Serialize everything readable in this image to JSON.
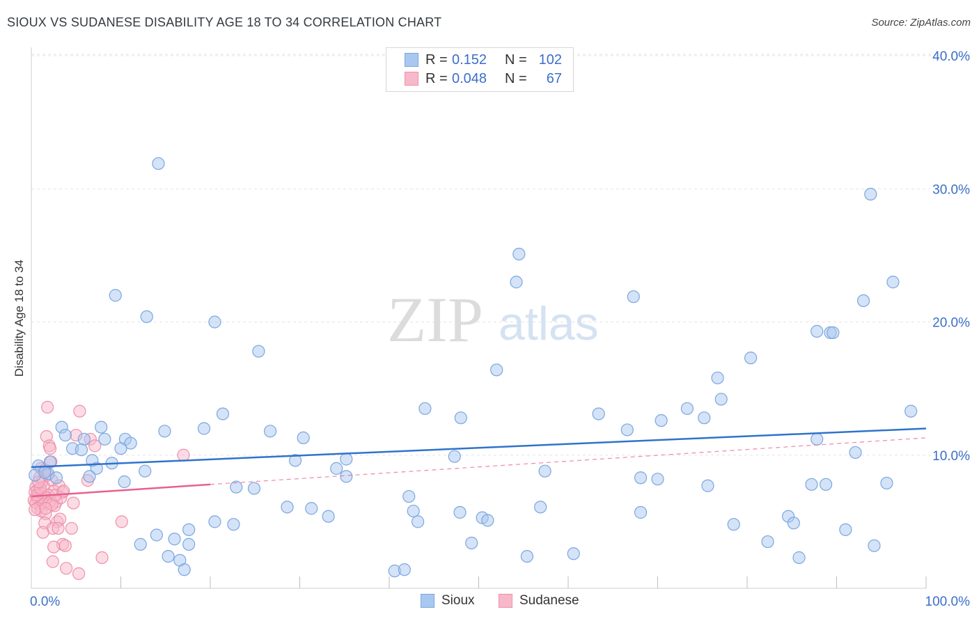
{
  "title": "SIOUX VS SUDANESE DISABILITY AGE 18 TO 34 CORRELATION CHART",
  "source": "Source: ZipAtlas.com",
  "watermark": {
    "zip": "ZIP",
    "atlas": "atlas"
  },
  "colors": {
    "sioux_fill": "#a9c8f0",
    "sioux_stroke": "#7aa6e0",
    "sioux_line": "#2f73cc",
    "sudanese_fill": "#f7b9ca",
    "sudanese_stroke": "#ee8fab",
    "sudanese_line": "#e8608e",
    "axis_label": "#3b6fc8",
    "grid": "#e3e3e3"
  },
  "legend_top": {
    "rows": [
      {
        "series": "Sioux",
        "r_label": "R =",
        "r_value": "0.152",
        "n_label": "N =",
        "n_value": "102"
      },
      {
        "series": "Sudanese",
        "r_label": "R =",
        "r_value": "0.048",
        "n_label": "N =",
        "n_value": "67"
      }
    ]
  },
  "legend_bottom": [
    "Sioux",
    "Sudanese"
  ],
  "chart_data": {
    "type": "scatter",
    "title": "SIOUX VS SUDANESE DISABILITY AGE 18 TO 34 CORRELATION CHART",
    "xlabel": "",
    "ylabel": "Disability Age 18 to 34",
    "xlim": [
      0,
      100
    ],
    "ylim": [
      0,
      42
    ],
    "x_tick_labels": [
      {
        "value": 0,
        "label": "0.0%"
      },
      {
        "value": 100,
        "label": "100.0%"
      }
    ],
    "y_tick_labels": [
      {
        "value": 10,
        "label": "10.0%"
      },
      {
        "value": 20,
        "label": "20.0%"
      },
      {
        "value": 30,
        "label": "30.0%"
      },
      {
        "value": 40,
        "label": "40.0%"
      }
    ],
    "grid": true,
    "series": [
      {
        "name": "Sioux",
        "trend": {
          "x": [
            0,
            100
          ],
          "y": [
            9.1,
            12.0
          ],
          "style": "solid"
        },
        "points": [
          [
            14.2,
            31.9
          ],
          [
            93.8,
            29.6
          ],
          [
            54.5,
            25.1
          ],
          [
            54.2,
            23.0
          ],
          [
            96.3,
            23.0
          ],
          [
            9.4,
            22.0
          ],
          [
            67.3,
            21.9
          ],
          [
            93.0,
            21.6
          ],
          [
            12.9,
            20.4
          ],
          [
            20.5,
            20.0
          ],
          [
            87.8,
            19.3
          ],
          [
            89.3,
            19.2
          ],
          [
            89.6,
            19.2
          ],
          [
            25.4,
            17.8
          ],
          [
            80.4,
            17.3
          ],
          [
            52.0,
            16.4
          ],
          [
            76.7,
            15.8
          ],
          [
            77.1,
            14.2
          ],
          [
            44.0,
            13.5
          ],
          [
            73.3,
            13.5
          ],
          [
            63.4,
            13.1
          ],
          [
            98.3,
            13.3
          ],
          [
            21.4,
            13.1
          ],
          [
            75.2,
            12.8
          ],
          [
            48.0,
            12.8
          ],
          [
            70.4,
            12.6
          ],
          [
            3.4,
            12.1
          ],
          [
            7.8,
            12.1
          ],
          [
            19.3,
            12.0
          ],
          [
            66.6,
            11.9
          ],
          [
            14.9,
            11.8
          ],
          [
            26.7,
            11.8
          ],
          [
            3.8,
            11.5
          ],
          [
            30.4,
            11.3
          ],
          [
            5.9,
            11.2
          ],
          [
            8.2,
            11.2
          ],
          [
            10.5,
            11.2
          ],
          [
            11.1,
            10.9
          ],
          [
            87.8,
            11.2
          ],
          [
            4.6,
            10.5
          ],
          [
            5.6,
            10.4
          ],
          [
            10.0,
            10.5
          ],
          [
            92.1,
            10.2
          ],
          [
            47.3,
            9.9
          ],
          [
            0.8,
            9.2
          ],
          [
            2.1,
            9.5
          ],
          [
            6.8,
            9.6
          ],
          [
            9.0,
            9.4
          ],
          [
            35.2,
            9.7
          ],
          [
            29.5,
            9.6
          ],
          [
            7.3,
            9.0
          ],
          [
            34.1,
            9.0
          ],
          [
            12.7,
            8.8
          ],
          [
            57.4,
            8.8
          ],
          [
            1.9,
            8.6
          ],
          [
            0.4,
            8.5
          ],
          [
            6.5,
            8.4
          ],
          [
            35.2,
            8.4
          ],
          [
            68.1,
            8.3
          ],
          [
            70.0,
            8.2
          ],
          [
            10.4,
            8.0
          ],
          [
            87.2,
            7.8
          ],
          [
            88.8,
            7.8
          ],
          [
            95.6,
            7.9
          ],
          [
            75.6,
            7.7
          ],
          [
            22.9,
            7.6
          ],
          [
            24.9,
            7.5
          ],
          [
            42.2,
            6.9
          ],
          [
            28.6,
            6.1
          ],
          [
            31.3,
            6.0
          ],
          [
            56.9,
            6.1
          ],
          [
            33.2,
            5.4
          ],
          [
            42.7,
            5.8
          ],
          [
            68.1,
            5.7
          ],
          [
            47.9,
            5.7
          ],
          [
            20.5,
            5.0
          ],
          [
            22.6,
            4.8
          ],
          [
            50.4,
            5.3
          ],
          [
            51.0,
            5.1
          ],
          [
            43.2,
            5.0
          ],
          [
            78.5,
            4.8
          ],
          [
            84.6,
            5.4
          ],
          [
            85.2,
            4.9
          ],
          [
            17.6,
            4.4
          ],
          [
            91.0,
            4.4
          ],
          [
            14.0,
            4.0
          ],
          [
            16.0,
            3.7
          ],
          [
            12.2,
            3.3
          ],
          [
            17.6,
            3.3
          ],
          [
            49.2,
            3.4
          ],
          [
            82.3,
            3.5
          ],
          [
            94.2,
            3.2
          ],
          [
            15.3,
            2.4
          ],
          [
            16.6,
            2.1
          ],
          [
            55.4,
            2.4
          ],
          [
            60.6,
            2.6
          ],
          [
            85.8,
            2.3
          ],
          [
            17.1,
            1.4
          ],
          [
            40.6,
            1.3
          ],
          [
            41.7,
            1.4
          ],
          [
            1.5,
            8.7
          ],
          [
            2.8,
            8.3
          ]
        ]
      },
      {
        "name": "Sudanese",
        "trend": {
          "x": [
            0,
            20
          ],
          "y": [
            6.9,
            7.8
          ],
          "style": "solid",
          "dashed_extension_to": [
            100,
            11.3
          ]
        },
        "points": [
          [
            1.8,
            13.6
          ],
          [
            5.4,
            13.3
          ],
          [
            1.7,
            11.4
          ],
          [
            5.0,
            11.5
          ],
          [
            6.6,
            11.2
          ],
          [
            2.0,
            10.7
          ],
          [
            2.1,
            10.5
          ],
          [
            7.1,
            10.7
          ],
          [
            17.0,
            10.0
          ],
          [
            2.2,
            9.5
          ],
          [
            1.1,
            9.0
          ],
          [
            1.5,
            8.9
          ],
          [
            1.8,
            8.5
          ],
          [
            0.9,
            8.3
          ],
          [
            1.2,
            8.0
          ],
          [
            0.5,
            7.6
          ],
          [
            2.3,
            8.1
          ],
          [
            6.3,
            8.1
          ],
          [
            3.1,
            7.7
          ],
          [
            1.4,
            7.6
          ],
          [
            0.7,
            7.4
          ],
          [
            2.5,
            7.3
          ],
          [
            0.4,
            7.2
          ],
          [
            0.9,
            7.0
          ],
          [
            1.3,
            7.1
          ],
          [
            1.9,
            7.0
          ],
          [
            3.5,
            7.2
          ],
          [
            0.6,
            6.8
          ],
          [
            0.8,
            6.6
          ],
          [
            1.2,
            6.8
          ],
          [
            1.7,
            6.8
          ],
          [
            2.2,
            6.6
          ],
          [
            2.8,
            6.5
          ],
          [
            0.3,
            6.6
          ],
          [
            0.5,
            6.4
          ],
          [
            1.0,
            6.2
          ],
          [
            1.4,
            6.3
          ],
          [
            2.0,
            6.4
          ],
          [
            2.6,
            6.2
          ],
          [
            3.3,
            6.8
          ],
          [
            4.7,
            6.4
          ],
          [
            0.7,
            6.0
          ],
          [
            1.1,
            5.8
          ],
          [
            1.6,
            5.6
          ],
          [
            2.3,
            6.3
          ],
          [
            0.4,
            5.9
          ],
          [
            2.9,
            5.0
          ],
          [
            3.2,
            5.2
          ],
          [
            1.5,
            4.9
          ],
          [
            2.4,
            4.5
          ],
          [
            3.0,
            4.5
          ],
          [
            4.5,
            4.5
          ],
          [
            1.3,
            4.2
          ],
          [
            10.1,
            5.0
          ],
          [
            3.5,
            3.3
          ],
          [
            2.5,
            3.1
          ],
          [
            3.8,
            3.2
          ],
          [
            7.9,
            2.3
          ],
          [
            2.4,
            2.0
          ],
          [
            3.9,
            1.5
          ],
          [
            5.3,
            1.1
          ],
          [
            0.6,
            7.0
          ],
          [
            1.0,
            7.5
          ],
          [
            2.7,
            7.0
          ],
          [
            1.6,
            6.0
          ],
          [
            3.6,
            7.3
          ],
          [
            0.8,
            8.0
          ]
        ]
      }
    ]
  }
}
